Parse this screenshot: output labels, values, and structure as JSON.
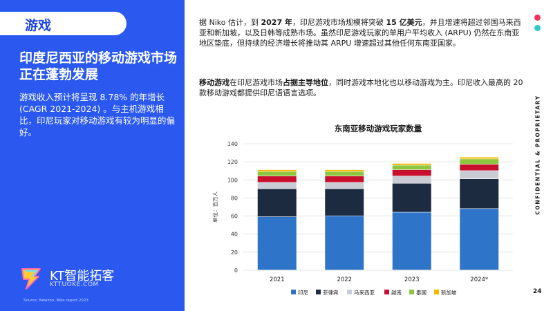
{
  "section_tab": "游戏",
  "headline": "印度尼西亚的移动游戏市场正在蓬勃发展",
  "summary": "游戏收入预计将呈现 8.78% 的年增长 (CAGR 2021-2024) 。与主机游戏相比，印尼玩家对移动游戏有较为明显的偏好。",
  "logo": {
    "name": "KT智能拓客",
    "url": "KTTUOKE.COM"
  },
  "source": "Source: Newzoo, Niko report 2023",
  "paragraph1": {
    "p1": "据 Niko 估计，到 ",
    "b1": "2027 年",
    "p2": "，印尼游戏市场规模将突破 ",
    "b2": "15 亿美元",
    "p3": "，并且增速将超过邻国马来西亚和新加坡，以及日韩等成熟市场。虽然印尼游戏玩家的单用户平均收入 (ARPU) 仍然在东南亚地区垫底，但持续的经济增长将推动其 ARPU 增速超过其他任何东南亚国家。"
  },
  "paragraph2": {
    "b1": "移动游戏",
    "p1": "在印尼游戏市场",
    "b2": "占据主导地位",
    "p2": "，同时游戏本地化也以移动游戏为主。印尼收入最高的 20 款移动游戏都提供印尼语语言选项。"
  },
  "side_label": "CONFIDENTIAL & PROPRIETARY",
  "page_number": "24",
  "colors": {
    "panel": "#2b59f0",
    "dot_pink": "#f0345f",
    "dot_teal": "#2ec9c9"
  },
  "chart_data": {
    "type": "bar",
    "stacked": true,
    "title": "东南亚移动游戏玩家数量",
    "ylabel": "单位：百万人",
    "ylim": [
      0,
      140
    ],
    "yticks": [
      0,
      20,
      40,
      60,
      80,
      100,
      120,
      140
    ],
    "grid": true,
    "legend_position": "bottom",
    "categories": [
      "2021",
      "2022",
      "2023",
      "2024*"
    ],
    "series": [
      {
        "name": "印尼",
        "color": "#2e75c9",
        "values": [
          59,
          60,
          64,
          68
        ]
      },
      {
        "name": "菲律宾",
        "color": "#1c2b40",
        "values": [
          31,
          30,
          32,
          33
        ]
      },
      {
        "name": "马来西亚",
        "color": "#c9ccd3",
        "values": [
          7,
          7,
          8,
          9
        ]
      },
      {
        "name": "越南",
        "color": "#c8102e",
        "values": [
          7,
          7,
          7,
          7
        ]
      },
      {
        "name": "泰国",
        "color": "#8dc63f",
        "values": [
          5,
          5,
          5,
          6
        ]
      },
      {
        "name": "新加坡",
        "color": "#f5b800",
        "values": [
          2,
          2,
          2,
          2
        ]
      }
    ]
  }
}
